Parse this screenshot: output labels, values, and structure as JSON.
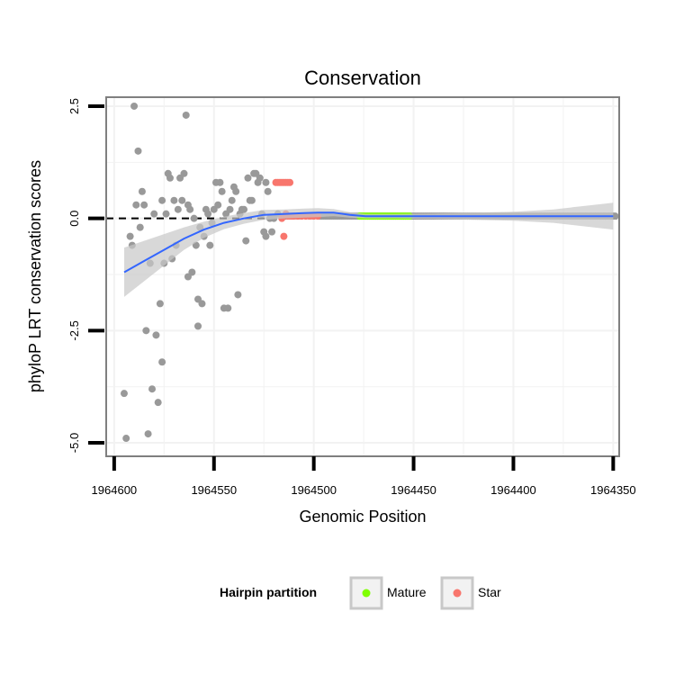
{
  "chart_data": {
    "type": "scatter",
    "title": "Conservation",
    "xlabel": "Genomic Position",
    "ylabel": "phyloP LRT conservation scores",
    "x_reversed": true,
    "xlim": [
      1964604,
      1964347
    ],
    "ylim": [
      -5.3,
      2.7
    ],
    "x_ticks": [
      1964600,
      1964550,
      1964500,
      1964450,
      1964400,
      1964350
    ],
    "x_tick_labels": [
      "1964600",
      "1964550",
      "1964500",
      "1964450",
      "1964400",
      "1964350"
    ],
    "y_ticks": [
      2.5,
      0.0,
      -2.5,
      -5.0
    ],
    "y_tick_labels": [
      "2.5",
      "0.0",
      "-2.5",
      "-5.0"
    ],
    "hline": 0,
    "legend": {
      "title": "Hairpin partition",
      "position": "bottom",
      "entries": [
        {
          "label": "Mature",
          "color": "#7fff00"
        },
        {
          "label": "Star",
          "color": "#f8766d"
        }
      ]
    },
    "colors": {
      "other": "#999999",
      "mature": "#7fff00",
      "star": "#f8766d",
      "smooth": "#3366ff",
      "ribbon": "#c8c8c8",
      "panel_border": "#7f7f7f",
      "grid": "#f2f2f2"
    },
    "series": [
      {
        "name": "Mature",
        "points": []
      },
      {
        "name": "Star",
        "points": []
      }
    ],
    "other_points": [
      [
        1964595,
        -3.9
      ],
      [
        1964594,
        -4.9
      ],
      [
        1964592,
        -0.4
      ],
      [
        1964591,
        -0.6
      ],
      [
        1964590,
        2.5
      ],
      [
        1964589,
        0.3
      ],
      [
        1964588,
        1.5
      ],
      [
        1964587,
        -0.2
      ],
      [
        1964586,
        0.6
      ],
      [
        1964585,
        0.3
      ],
      [
        1964584,
        -2.5
      ],
      [
        1964583,
        -4.8
      ],
      [
        1964582,
        -1.0
      ],
      [
        1964581,
        -3.8
      ],
      [
        1964580,
        0.1
      ],
      [
        1964579,
        -2.6
      ],
      [
        1964578,
        -4.1
      ],
      [
        1964577,
        -1.9
      ],
      [
        1964576,
        0.4
      ],
      [
        1964576,
        -3.2
      ],
      [
        1964575,
        -1.0
      ],
      [
        1964574,
        0.1
      ],
      [
        1964573,
        1.0
      ],
      [
        1964572,
        0.9
      ],
      [
        1964571,
        -0.9
      ],
      [
        1964570,
        0.4
      ],
      [
        1964569,
        -0.6
      ],
      [
        1964568,
        0.2
      ],
      [
        1964567,
        0.9
      ],
      [
        1964566,
        0.4
      ],
      [
        1964565,
        1.0
      ],
      [
        1964564,
        2.3
      ],
      [
        1964563,
        0.3
      ],
      [
        1964563,
        -1.3
      ],
      [
        1964562,
        0.2
      ],
      [
        1964561,
        -1.2
      ],
      [
        1964560,
        0.0
      ],
      [
        1964559,
        -0.6
      ],
      [
        1964558,
        -2.4
      ],
      [
        1964558,
        -1.8
      ],
      [
        1964557,
        -0.2
      ],
      [
        1964556,
        -1.9
      ],
      [
        1964555,
        -0.4
      ],
      [
        1964554,
        0.2
      ],
      [
        1964553,
        0.1
      ],
      [
        1964552,
        -0.6
      ],
      [
        1964551,
        -0.1
      ],
      [
        1964550,
        0.2
      ],
      [
        1964549,
        0.8
      ],
      [
        1964548,
        0.3
      ],
      [
        1964547,
        0.8
      ],
      [
        1964546,
        0.6
      ],
      [
        1964545,
        -2.0
      ],
      [
        1964544,
        0.1
      ],
      [
        1964543,
        -2.0
      ],
      [
        1964542,
        0.2
      ],
      [
        1964541,
        0.4
      ],
      [
        1964540,
        0.7
      ],
      [
        1964539,
        0.6
      ],
      [
        1964538,
        -1.7
      ],
      [
        1964537,
        0.1
      ],
      [
        1964536,
        0.2
      ],
      [
        1964535,
        0.2
      ],
      [
        1964534,
        -0.5
      ],
      [
        1964533,
        0.9
      ],
      [
        1964532,
        0.4
      ],
      [
        1964531,
        0.4
      ],
      [
        1964530,
        1.0
      ],
      [
        1964529,
        1.0
      ],
      [
        1964528,
        0.8
      ],
      [
        1964527,
        0.9
      ],
      [
        1964526,
        0.1
      ],
      [
        1964525,
        -0.3
      ],
      [
        1964524,
        0.8
      ],
      [
        1964524,
        -0.4
      ],
      [
        1964523,
        0.6
      ],
      [
        1964522,
        0.0
      ],
      [
        1964521,
        -0.3
      ],
      [
        1964520,
        0.0
      ],
      [
        1964518,
        0.1
      ]
    ],
    "mature_range": [
      1964477,
      1964452
    ],
    "star_points": [
      [
        1964519,
        0.8
      ],
      [
        1964518,
        0.8
      ],
      [
        1964517,
        0.8
      ],
      [
        1964516,
        0.8
      ],
      [
        1964515,
        0.8
      ],
      [
        1964514,
        0.8
      ],
      [
        1964513,
        0.8
      ],
      [
        1964512,
        0.8
      ],
      [
        1964516,
        0.0
      ],
      [
        1964515,
        -0.4
      ],
      [
        1964514,
        0.1
      ],
      [
        1964513,
        0.05
      ],
      [
        1964512,
        0.05
      ],
      [
        1964511,
        0.05
      ],
      [
        1964510,
        0.05
      ],
      [
        1964508,
        0.05
      ],
      [
        1964506,
        0.05
      ],
      [
        1964504,
        0.05
      ],
      [
        1964502,
        0.05
      ],
      [
        1964500,
        0.05
      ],
      [
        1964498,
        0.05
      ]
    ],
    "baseline_range": [
      1964497,
      1964349
    ],
    "baseline_value": 0.05,
    "smooth_line": [
      [
        1964595,
        -1.2
      ],
      [
        1964585,
        -0.95
      ],
      [
        1964575,
        -0.7
      ],
      [
        1964565,
        -0.45
      ],
      [
        1964555,
        -0.25
      ],
      [
        1964545,
        -0.1
      ],
      [
        1964535,
        0.0
      ],
      [
        1964525,
        0.08
      ],
      [
        1964515,
        0.1
      ],
      [
        1964505,
        0.12
      ],
      [
        1964498,
        0.13
      ],
      [
        1964490,
        0.13
      ],
      [
        1964482,
        0.08
      ],
      [
        1964474,
        0.05
      ],
      [
        1964460,
        0.05
      ],
      [
        1964440,
        0.05
      ],
      [
        1964420,
        0.05
      ],
      [
        1964400,
        0.05
      ],
      [
        1964380,
        0.05
      ],
      [
        1964360,
        0.05
      ],
      [
        1964350,
        0.05
      ]
    ],
    "smooth_band": [
      [
        1964595,
        -1.2,
        0.55
      ],
      [
        1964585,
        -0.95,
        0.45
      ],
      [
        1964575,
        -0.7,
        0.35
      ],
      [
        1964565,
        -0.45,
        0.25
      ],
      [
        1964555,
        -0.25,
        0.18
      ],
      [
        1964545,
        -0.1,
        0.14
      ],
      [
        1964535,
        0.0,
        0.12
      ],
      [
        1964525,
        0.08,
        0.11
      ],
      [
        1964515,
        0.1,
        0.1
      ],
      [
        1964505,
        0.12,
        0.1
      ],
      [
        1964498,
        0.13,
        0.1
      ],
      [
        1964490,
        0.13,
        0.08
      ],
      [
        1964482,
        0.08,
        0.06
      ],
      [
        1964474,
        0.05,
        0.05
      ],
      [
        1964460,
        0.05,
        0.05
      ],
      [
        1964440,
        0.05,
        0.06
      ],
      [
        1964420,
        0.05,
        0.08
      ],
      [
        1964400,
        0.05,
        0.1
      ],
      [
        1964380,
        0.05,
        0.15
      ],
      [
        1964360,
        0.05,
        0.25
      ],
      [
        1964350,
        0.05,
        0.3
      ]
    ]
  }
}
